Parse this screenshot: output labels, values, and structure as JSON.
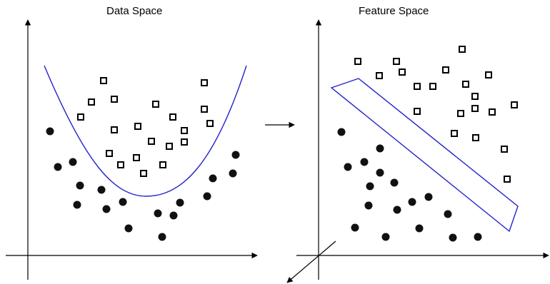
{
  "panels": {
    "left": {
      "title": "Data Space"
    },
    "right": {
      "title": "Feature Space"
    }
  },
  "colors": {
    "axis": "#000000",
    "boundary": "#2222cc",
    "circle_fill": "#111111",
    "square_stroke": "#000000"
  }
}
